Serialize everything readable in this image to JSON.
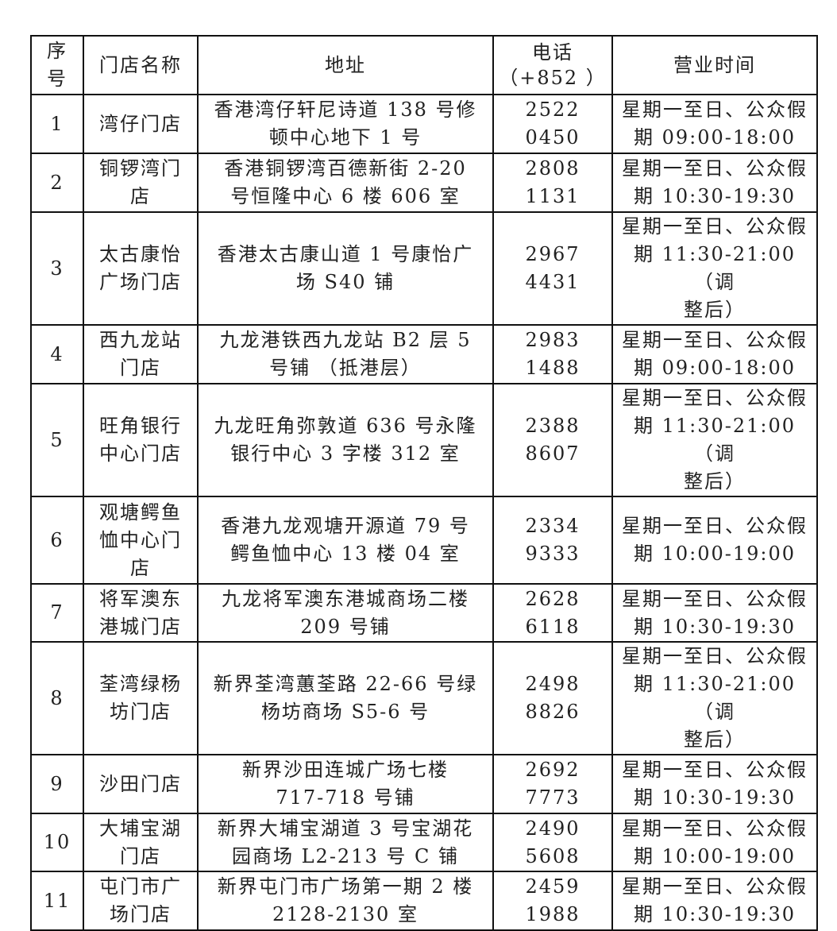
{
  "headers": [
    "序\n号",
    "门店名称",
    "地址",
    "电话\n（+852 ）",
    "营业时间"
  ],
  "rows": [
    [
      "1",
      "湾仔门店",
      "香港湾仔轩尼诗道 138 号修\n顿中心地下 1 号",
      "2522 0450",
      "星期一至日、公众假\n期 09:00-18:00"
    ],
    [
      "2",
      "铜锣湾门\n店",
      "香港铜锣湾百德新街 2-20\n号恒隆中心 6 楼 606 室",
      "2808 1131",
      "星期一至日、公众假\n期 10:30-19:30"
    ],
    [
      "3",
      "太古康怡\n广场门店",
      "香港太古康山道 1 号康怡广\n场 S40 铺",
      "2967 4431",
      "星期一至日、公众假\n期 11:30-21:00（调\n整后）"
    ],
    [
      "4",
      "西九龙站\n门店",
      "九龙港铁西九龙站 B2 层 5\n号铺 （抵港层）",
      "2983 1488",
      "星期一至日、公众假\n期 09:00-18:00"
    ],
    [
      "5",
      "旺角银行\n中心门店",
      "九龙旺角弥敦道 636 号永隆\n银行中心 3 字楼 312 室",
      "2388 8607",
      "星期一至日、公众假\n期 11:30-21:00（调\n整后）"
    ],
    [
      "6",
      "观塘鳄鱼\n恤中心门\n店",
      "香港九龙观塘开源道 79 号\n鳄鱼恤中心 13 楼 04 室",
      "2334 9333",
      "星期一至日、公众假\n期 10:00-19:00"
    ],
    [
      "7",
      "将军澳东\n港城门店",
      "九龙将军澳东港城商场二楼\n209 号铺",
      "2628 6118",
      "星期一至日、公众假\n期 10:30-19:30"
    ],
    [
      "8",
      "荃湾绿杨\n坊门店",
      "新界荃湾蕙荃路 22-66 号绿\n杨坊商场 S5-6 号",
      "2498 8826",
      "星期一至日、公众假\n期 11:30-21:00（调\n整后）"
    ],
    [
      "9",
      "沙田门店",
      "新界沙田连城广场七楼\n717-718 号铺",
      "2692 7773",
      "星期一至日、公众假\n期 10:30-19:30"
    ],
    [
      "10",
      "大埔宝湖\n门店",
      "新界大埔宝湖道 3 号宝湖花\n园商场 L2-213 号 C 铺",
      "2490 5608",
      "星期一至日、公众假\n期 10:00-19:00"
    ],
    [
      "11",
      "屯门市广\n场门店",
      "新界屯门市广场第一期 2 楼\n2128-2130 室",
      "2459 1988",
      "星期一至日、公众假\n期 10:30-19:30"
    ]
  ]
}
